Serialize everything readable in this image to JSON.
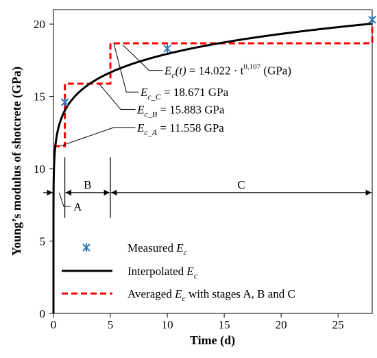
{
  "chart_data": {
    "type": "line",
    "xlabel": "Time (d)",
    "ylabel": "Young’s modulus of shotcrete (GPa)",
    "xlim": [
      0,
      28
    ],
    "ylim": [
      0,
      21
    ],
    "xticks": [
      "0",
      "5",
      "10",
      "15",
      "20",
      "25"
    ],
    "xtick_values": [
      0,
      5,
      10,
      15,
      20,
      25
    ],
    "yticks": [
      "0",
      "5",
      "10",
      "15",
      "20"
    ],
    "ytick_values": [
      0,
      5,
      10,
      15,
      20
    ],
    "series": [
      {
        "name": "Measured Ec",
        "marker": "asterisk",
        "color": "#2e75b6",
        "x": [
          1,
          10,
          28
        ],
        "y": [
          14.6,
          18.3,
          20.3
        ]
      },
      {
        "name": "Interpolated Ec",
        "style": "solid",
        "color": "#000000",
        "function": "Ec(t) = 14.022 * t^0.107"
      },
      {
        "name": "Averaged Ec with stages A, B and C",
        "style": "dashed",
        "color": "#ff0000",
        "steps": [
          {
            "stage": "A",
            "x_start": 0,
            "x_end": 1,
            "value": 11.558
          },
          {
            "stage": "B",
            "x_start": 1,
            "x_end": 5,
            "value": 15.883
          },
          {
            "stage": "C",
            "x_start": 5,
            "x_end": 28,
            "value": 18.671
          }
        ]
      }
    ],
    "stages": [
      {
        "label": "A",
        "from": 0,
        "to": 1
      },
      {
        "label": "B",
        "from": 1,
        "to": 5
      },
      {
        "label": "C",
        "from": 5,
        "to": 28
      }
    ],
    "annotations": {
      "formula": {
        "sym": "E",
        "sub": "c",
        "arg": "(t)",
        "rest": " = 14.022 · t",
        "exp": "0,107",
        "unit": " (GPa)"
      },
      "ec_c": {
        "sym": "E",
        "sub": "c_C",
        "rest": " = 18.671 GPa"
      },
      "ec_b": {
        "sym": "E",
        "sub": "c_B",
        "rest": " = 15.883 GPa"
      },
      "ec_a": {
        "sym": "E",
        "sub": "c_A",
        "rest": " = 11.558 GPa"
      }
    },
    "legend": {
      "position": "bottom-left",
      "items": [
        {
          "pre": "Measured ",
          "sym": "E",
          "sub": "c",
          "post": ""
        },
        {
          "pre": "Interpolated  ",
          "sym": "E",
          "sub": "c",
          "post": ""
        },
        {
          "pre": "Averaged ",
          "sym": "E",
          "sub": "c",
          "post": " with stages A, B and C"
        }
      ]
    },
    "grid": false
  }
}
